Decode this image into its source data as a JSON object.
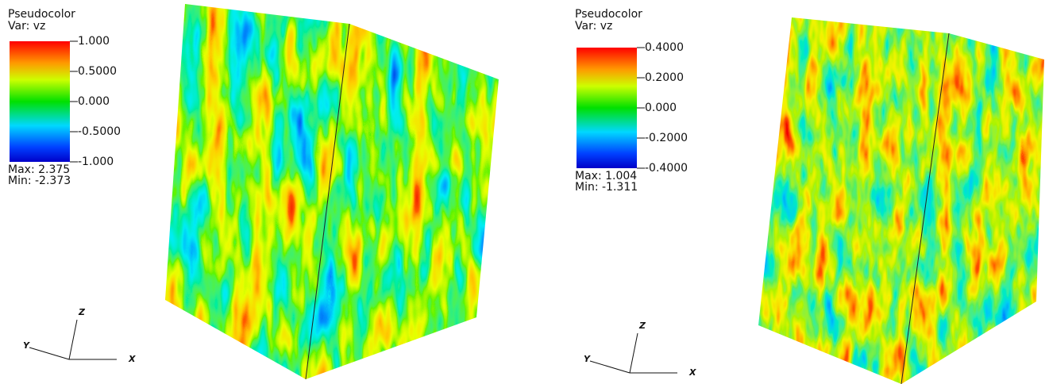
{
  "panels": [
    {
      "legend": {
        "title": "Pseudocolor",
        "variable": "Var: vz",
        "ticks": [
          "1.000",
          "0.5000",
          "0.000",
          "-0.5000",
          "-1.000"
        ],
        "max": "Max: 2.375",
        "min": "Min: -2.373"
      },
      "axes": {
        "x": "X",
        "y": "Y",
        "z": "Z"
      }
    },
    {
      "legend": {
        "title": "Pseudocolor",
        "variable": "Var: vz",
        "ticks": [
          "0.4000",
          "0.2000",
          "0.000",
          "-0.2000",
          "-0.4000"
        ],
        "max": "Max: 1.004",
        "min": "Min: -1.311"
      },
      "axes": {
        "x": "X",
        "y": "Y",
        "z": "Z"
      }
    }
  ]
}
